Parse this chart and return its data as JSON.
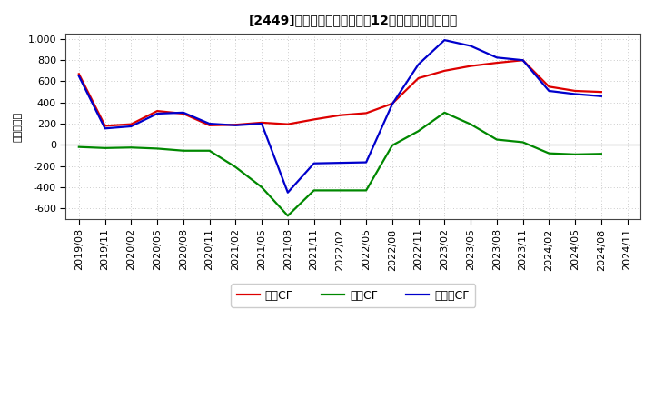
{
  "title": "[2449]　キャッシュフローの12か月移動合計の推移",
  "ylabel": "（百万円）",
  "x_labels": [
    "2019/08",
    "2019/11",
    "2020/02",
    "2020/05",
    "2020/08",
    "2020/11",
    "2021/02",
    "2021/05",
    "2021/08",
    "2021/11",
    "2022/02",
    "2022/05",
    "2022/08",
    "2022/11",
    "2023/02",
    "2023/05",
    "2023/08",
    "2023/11",
    "2024/02",
    "2024/05",
    "2024/08",
    "2024/11"
  ],
  "operating_cf": [
    670,
    180,
    195,
    320,
    295,
    185,
    190,
    210,
    195,
    240,
    280,
    300,
    390,
    630,
    700,
    745,
    775,
    800,
    550,
    510,
    500,
    null
  ],
  "investing_cf": [
    -20,
    -30,
    -25,
    -35,
    -55,
    -55,
    -210,
    -400,
    -670,
    -430,
    -430,
    -430,
    -5,
    130,
    305,
    195,
    50,
    25,
    -80,
    -90,
    -85,
    null
  ],
  "free_cf": [
    650,
    155,
    175,
    295,
    305,
    200,
    185,
    200,
    -450,
    -175,
    -170,
    -165,
    385,
    760,
    990,
    935,
    825,
    800,
    510,
    480,
    460,
    null
  ],
  "operating_color": "#dd0000",
  "investing_color": "#008800",
  "free_color": "#0000cc",
  "ylim": [
    -700,
    1050
  ],
  "yticks": [
    -600,
    -400,
    -200,
    0,
    200,
    400,
    600,
    800,
    1000
  ],
  "background_color": "#ffffff",
  "plot_bg_color": "#f5f5f5",
  "grid_color": "#bbbbbb",
  "legend_labels": [
    "営業CF",
    "投資CF",
    "フリーCF"
  ]
}
